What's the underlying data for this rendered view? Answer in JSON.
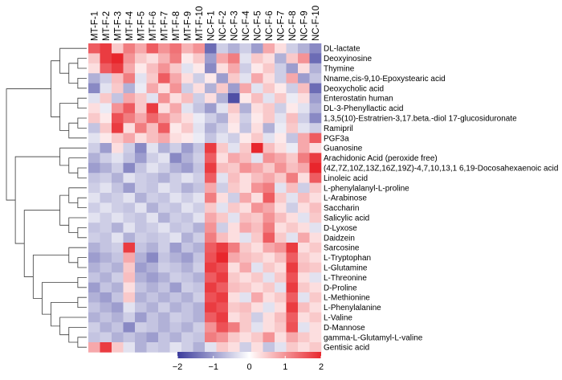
{
  "chart_data": {
    "type": "heatmap",
    "title": "",
    "columns": [
      "MT-F-1",
      "MT-F-2",
      "MT-F-3",
      "MT-F-4",
      "MT-F-5",
      "MT-F-6",
      "MT-F-7",
      "MT-F-8",
      "MT-F-9",
      "MT-F-10",
      "NC-F-1",
      "NC-F-2",
      "NC-F-3",
      "NC-F-4",
      "NC-F-5",
      "NC-F-6",
      "NC-F-7",
      "NC-F-8",
      "NC-F-9",
      "NC-F-10"
    ],
    "rows": [
      "DL-lactate",
      "Deoxyinosine",
      "Thymine",
      "Nname,cis-9,10-Epoxystearic acid",
      "Deoxycholic acid",
      "Enterostatin human",
      "DL-3-Phenyllactic acid",
      "1,3,5(10)-Estratrien-3,17.beta.-diol 17-glucosiduronate",
      "Ramipril",
      "PGF3a",
      "Guanosine",
      "Arachidonic Acid (peroxide free)",
      "(4Z,7Z,10Z,13Z,16Z,19Z)-4,7,10,13,1 6,19-Docosahexaenoic acid",
      "Linoleic acid",
      "L-phenylalanyl-L-proline",
      "L-Arabinose",
      "Saccharin",
      "Salicylic acid",
      "D-Lyxose",
      "Daidzein",
      "Sarcosine",
      "L-Tryptophan",
      "L-Glutamine",
      "L-Threonine",
      "D-Proline",
      "L-Methionine",
      "L-Phenylalanine",
      "L-Valine",
      "D-Mannose",
      "gamma-L-Glutamyl-L-valine",
      "Gentisic acid"
    ],
    "values": [
      [
        1.5,
        1.8,
        0.5,
        1.2,
        0.8,
        1.5,
        1.0,
        1.3,
        0.7,
        1.0,
        -1.5,
        -0.5,
        -0.8,
        -0.5,
        -1.0,
        0.8,
        0.3,
        -0.5,
        -0.8,
        -1.2
      ],
      [
        0.5,
        1.8,
        2.0,
        1.0,
        0.5,
        0.3,
        0.7,
        1.2,
        0.2,
        0.5,
        -1.0,
        0.8,
        1.2,
        -0.3,
        0.5,
        0.3,
        -0.8,
        0.5,
        1.0,
        -1.5
      ],
      [
        0.3,
        1.5,
        1.8,
        0.8,
        0.2,
        0.6,
        1.0,
        0.5,
        -0.3,
        0.2,
        -1.2,
        0.3,
        0.8,
        -0.5,
        0.2,
        0.5,
        -0.5,
        -1.0,
        0.3,
        -0.8
      ],
      [
        -0.8,
        -0.5,
        0.6,
        1.2,
        -0.3,
        0.5,
        1.5,
        0.8,
        0.3,
        -0.5,
        0.2,
        -1.0,
        0.5,
        -0.3,
        0.8,
        0.3,
        -0.5,
        0.8,
        -1.0,
        -0.6
      ],
      [
        -1.2,
        -0.3,
        0.5,
        -0.8,
        -0.2,
        0.8,
        0.3,
        1.0,
        -0.5,
        0.3,
        -0.8,
        0.5,
        -1.0,
        0.8,
        -0.3,
        0.5,
        0.2,
        -0.5,
        0.6,
        -1.5
      ],
      [
        -0.3,
        0.5,
        -0.6,
        0.8,
        0.5,
        -0.3,
        1.0,
        0.3,
        0.6,
        -0.5,
        0.3,
        -0.8,
        -1.8,
        0.2,
        0.6,
        -0.3,
        0.5,
        -0.2,
        0.3,
        -1.0
      ],
      [
        0.3,
        -0.2,
        1.0,
        1.5,
        0.5,
        1.8,
        0.3,
        0.8,
        -0.3,
        -0.6,
        -1.0,
        -0.3,
        0.5,
        -0.8,
        0.3,
        0.5,
        -0.5,
        0.2,
        -0.3,
        -0.8
      ],
      [
        0.5,
        0.2,
        1.6,
        1.2,
        0.8,
        1.4,
        1.0,
        0.6,
        0.3,
        -0.2,
        -0.5,
        -0.8,
        0.3,
        -0.5,
        0.2,
        0.5,
        -0.3,
        0.6,
        -0.5,
        -1.2
      ],
      [
        -0.6,
        0.5,
        1.8,
        0.3,
        1.2,
        0.6,
        1.5,
        0.2,
        0.5,
        -0.3,
        -0.8,
        -0.5,
        0.2,
        -0.6,
        0.3,
        -0.8,
        -0.2,
        0.5,
        -0.3,
        -0.5
      ],
      [
        -0.3,
        0.2,
        0.5,
        0.8,
        0.3,
        0.6,
        0.8,
        0.3,
        0.2,
        -0.2,
        -0.6,
        -0.3,
        -0.5,
        0.2,
        0.5,
        -0.3,
        0.2,
        -0.6,
        0.8,
        1.5
      ],
      [
        -0.5,
        -1.0,
        0.3,
        -0.5,
        -1.2,
        -0.3,
        -0.8,
        -0.5,
        -1.0,
        -0.6,
        1.8,
        0.5,
        -0.3,
        0.5,
        2.0,
        0.6,
        0.3,
        -0.2,
        0.8,
        0.3
      ],
      [
        -0.8,
        -0.5,
        -0.3,
        -0.6,
        -1.0,
        -0.5,
        -0.3,
        -1.2,
        -0.8,
        -0.5,
        1.5,
        0.3,
        0.8,
        0.6,
        -0.3,
        1.0,
        0.8,
        0.5,
        1.2,
        1.8
      ],
      [
        -1.0,
        -0.8,
        -0.5,
        -1.2,
        -0.6,
        -0.3,
        -0.5,
        -0.8,
        -1.0,
        -0.6,
        1.8,
        0.6,
        0.5,
        1.0,
        0.8,
        0.5,
        1.0,
        0.6,
        0.8,
        2.0
      ],
      [
        -0.6,
        -0.5,
        -0.8,
        -0.3,
        -0.5,
        -0.6,
        -0.8,
        -0.5,
        -0.3,
        -0.5,
        1.5,
        -0.3,
        0.6,
        0.3,
        0.6,
        0.8,
        0.5,
        1.2,
        0.3,
        1.5
      ],
      [
        -0.5,
        -0.3,
        -0.6,
        -1.0,
        -0.5,
        -0.6,
        -0.3,
        -0.5,
        -0.8,
        -0.6,
        0.8,
        -0.5,
        0.5,
        0.3,
        1.0,
        1.2,
        -0.3,
        0.6,
        -0.5,
        0.5
      ],
      [
        -0.3,
        -0.6,
        -0.5,
        -0.3,
        -0.8,
        -0.5,
        -0.6,
        -0.3,
        -0.5,
        -0.3,
        1.2,
        0.3,
        -0.5,
        0.8,
        0.3,
        1.5,
        0.5,
        -0.3,
        0.6,
        0.3
      ],
      [
        -0.5,
        -0.3,
        -0.5,
        -0.6,
        -0.3,
        -0.8,
        -0.5,
        -0.6,
        -0.3,
        -0.5,
        0.5,
        -0.3,
        0.5,
        0.3,
        1.0,
        0.8,
        0.3,
        -0.5,
        0.3,
        0.6
      ],
      [
        -0.3,
        -0.5,
        -0.3,
        -0.5,
        -0.6,
        -0.3,
        -0.8,
        -0.5,
        -0.6,
        -0.3,
        0.8,
        0.5,
        -0.3,
        0.6,
        0.5,
        1.0,
        0.6,
        0.3,
        -0.3,
        0.5
      ],
      [
        -0.6,
        -0.5,
        -0.8,
        -0.3,
        -0.6,
        -0.5,
        -0.3,
        -0.6,
        -0.5,
        -0.8,
        1.0,
        -0.5,
        0.3,
        0.8,
        0.6,
        1.2,
        0.3,
        0.5,
        0.3,
        -0.3
      ],
      [
        -0.5,
        -0.6,
        -0.3,
        -0.8,
        -0.5,
        -0.6,
        -0.5,
        -0.3,
        -0.8,
        -0.5,
        1.2,
        0.6,
        0.3,
        -0.3,
        0.5,
        1.5,
        0.5,
        -0.3,
        0.8,
        0.3
      ],
      [
        -0.8,
        -0.6,
        -0.5,
        1.8,
        -0.6,
        -0.8,
        -0.5,
        -1.0,
        -0.6,
        -0.8,
        1.5,
        1.8,
        1.2,
        0.5,
        0.3,
        0.8,
        1.0,
        1.8,
        0.3,
        0.5
      ],
      [
        -1.0,
        -0.8,
        -0.6,
        0.8,
        -0.8,
        -1.2,
        -0.6,
        -0.8,
        -1.0,
        -0.6,
        1.6,
        2.0,
        0.8,
        0.6,
        0.5,
        0.3,
        0.6,
        1.5,
        0.5,
        0.3
      ],
      [
        -0.8,
        -0.6,
        -0.8,
        0.5,
        -1.0,
        -0.8,
        -0.5,
        -0.6,
        -0.8,
        -0.5,
        1.8,
        1.6,
        0.3,
        0.8,
        -0.3,
        0.5,
        0.3,
        1.8,
        0.6,
        0.5
      ],
      [
        -0.6,
        -0.8,
        -0.5,
        0.6,
        -0.8,
        -1.0,
        -0.8,
        -0.5,
        -0.6,
        -0.8,
        1.5,
        1.8,
        0.5,
        0.3,
        0.5,
        -0.3,
        0.5,
        1.6,
        0.3,
        -0.3
      ],
      [
        -1.0,
        -0.6,
        -0.8,
        0.3,
        -0.6,
        -0.8,
        -0.6,
        -1.0,
        -0.5,
        -0.6,
        1.8,
        1.5,
        0.6,
        0.5,
        0.3,
        0.5,
        -0.3,
        1.8,
        0.5,
        0.3
      ],
      [
        -0.8,
        -1.0,
        -0.6,
        0.5,
        -0.8,
        -0.6,
        -0.8,
        -0.6,
        -0.8,
        -0.5,
        1.6,
        1.8,
        0.3,
        -0.3,
        0.8,
        0.3,
        0.5,
        1.5,
        -0.3,
        0.5
      ],
      [
        -0.6,
        -0.8,
        -1.0,
        -0.3,
        -0.6,
        -0.8,
        -0.5,
        -0.8,
        -0.6,
        -0.8,
        1.8,
        1.6,
        0.5,
        0.6,
        0.3,
        -0.3,
        0.3,
        1.8,
        0.6,
        0.3
      ],
      [
        -0.8,
        -0.6,
        -0.8,
        -0.5,
        -1.0,
        -0.6,
        -0.8,
        -0.5,
        -0.6,
        -0.8,
        1.5,
        1.8,
        0.3,
        0.5,
        -0.5,
        0.3,
        0.6,
        1.5,
        0.3,
        0.5
      ],
      [
        -0.5,
        -0.8,
        -0.6,
        -1.2,
        -0.5,
        -0.6,
        -0.8,
        -0.6,
        -0.8,
        -0.5,
        1.0,
        1.6,
        1.2,
        0.5,
        -0.3,
        0.3,
        0.5,
        1.6,
        -0.3,
        0.3
      ],
      [
        -0.6,
        -0.5,
        -0.8,
        -0.6,
        -0.8,
        -1.0,
        -0.6,
        -0.8,
        -0.5,
        -0.6,
        1.2,
        1.0,
        0.5,
        0.3,
        0.5,
        1.0,
        0.3,
        0.8,
        0.5,
        0.3
      ],
      [
        0.8,
        1.8,
        0.5,
        -0.3,
        -0.8,
        -0.5,
        -0.6,
        -0.3,
        -0.5,
        -0.8,
        -0.3,
        0.5,
        0.3,
        -0.5,
        0.3,
        -0.6,
        -0.3,
        0.5,
        0.3,
        0.5
      ]
    ],
    "color_scale": {
      "min": -2,
      "max": 2,
      "low_color": "#3b3b9c",
      "mid_color": "#ffffff",
      "high_color": "#e8262c",
      "ticks": [
        -2,
        -1,
        0,
        1,
        2
      ]
    },
    "row_dendrogram": true,
    "legend_position": "bottom"
  }
}
